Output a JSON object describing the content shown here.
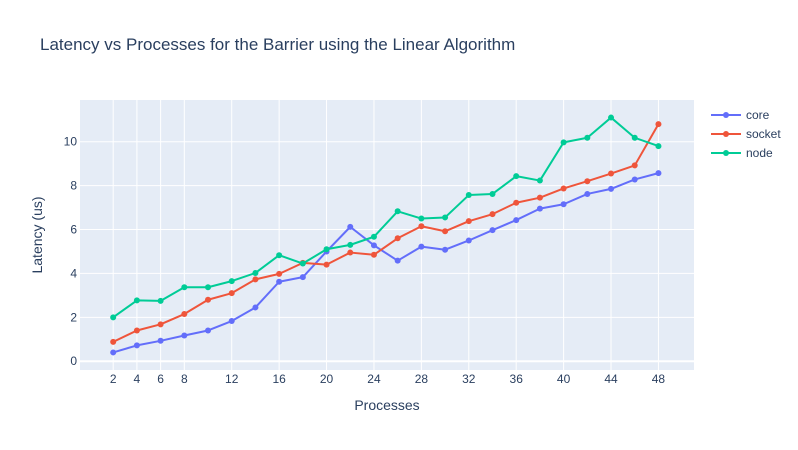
{
  "chart_data": {
    "type": "line",
    "title": "Latency vs Processes for the Barrier using the Linear Algorithm",
    "xlabel": "Processes",
    "ylabel": "Latency (us)",
    "x": [
      2,
      4,
      6,
      8,
      10,
      12,
      14,
      16,
      18,
      20,
      22,
      24,
      26,
      28,
      30,
      32,
      34,
      36,
      38,
      40,
      42,
      44,
      46,
      48
    ],
    "xticks": [
      2,
      4,
      6,
      8,
      12,
      16,
      20,
      24,
      28,
      32,
      36,
      40,
      44,
      48
    ],
    "yticks": [
      0,
      2,
      4,
      6,
      8,
      10
    ],
    "xlim": [
      -0.8,
      51
    ],
    "ylim": [
      -0.4,
      11.9
    ],
    "legend_position": "top-right",
    "series": [
      {
        "name": "core",
        "color": "#636efa",
        "values": [
          0.4,
          0.72,
          0.93,
          1.17,
          1.4,
          1.83,
          2.45,
          3.62,
          3.83,
          5.0,
          6.12,
          5.28,
          4.58,
          5.22,
          5.08,
          5.5,
          5.97,
          6.43,
          6.95,
          7.15,
          7.62,
          7.85,
          8.28,
          8.57
        ]
      },
      {
        "name": "socket",
        "color": "#ef553b",
        "values": [
          0.88,
          1.4,
          1.68,
          2.15,
          2.8,
          3.1,
          3.73,
          3.98,
          4.48,
          4.4,
          4.95,
          4.85,
          5.6,
          6.15,
          5.92,
          6.38,
          6.7,
          7.22,
          7.45,
          7.87,
          8.2,
          8.55,
          8.92,
          10.8
        ]
      },
      {
        "name": "node",
        "color": "#00cc96",
        "values": [
          2.0,
          2.77,
          2.75,
          3.37,
          3.37,
          3.65,
          4.02,
          4.83,
          4.45,
          5.1,
          5.3,
          5.67,
          6.83,
          6.5,
          6.55,
          7.57,
          7.62,
          8.43,
          8.23,
          9.97,
          10.18,
          11.1,
          10.18,
          9.8
        ]
      }
    ]
  }
}
